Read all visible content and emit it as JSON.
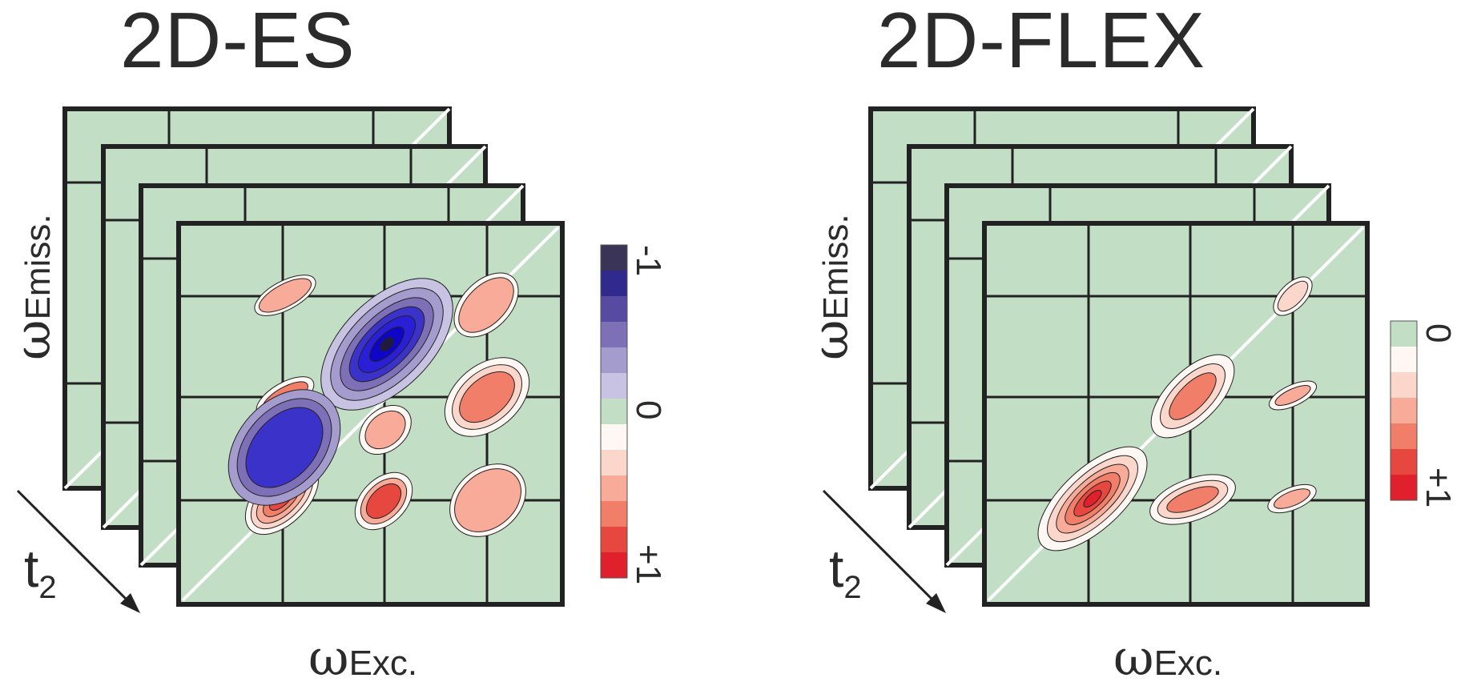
{
  "panels": [
    {
      "title": "2D-ES",
      "excitation_axis": {
        "symbol": "ω",
        "subscript": "Exc."
      },
      "emission_axis": {
        "symbol": "ω",
        "subscript": "Emiss."
      },
      "time_axis": {
        "symbol": "t",
        "subscript": "2"
      },
      "colorbar": {
        "top_label": "-1",
        "middle_label": "0",
        "bottom_label": "+1"
      }
    },
    {
      "title": "2D-FLEX",
      "excitation_axis": {
        "symbol": "ω",
        "subscript": "Exc."
      },
      "emission_axis": {
        "symbol": "ω",
        "subscript": "Emiss."
      },
      "time_axis": {
        "symbol": "t",
        "subscript": "2"
      },
      "colorbar": {
        "top_label": "0",
        "bottom_label": "+1"
      }
    }
  ],
  "colors": {
    "background_green": "#c2dfc6",
    "frame": "#222222",
    "diagonal": "#ffffff",
    "negative_scale": [
      "#c8c3e2",
      "#a49ccd",
      "#7d70b6",
      "#564ba0",
      "#2f2a8b",
      "#3a3456"
    ],
    "positive_scale": [
      "#fef7f3",
      "#fbd6cb",
      "#f7ab98",
      "#f07e68",
      "#e6473e",
      "#e0202d"
    ],
    "zero": "#c2dfc6"
  }
}
